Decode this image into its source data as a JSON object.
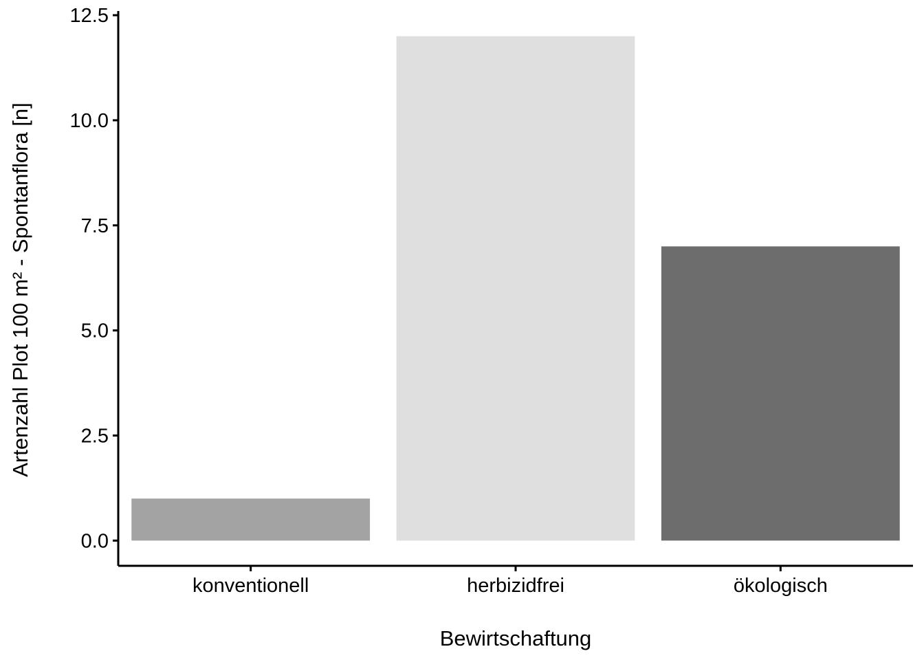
{
  "chart_data": {
    "type": "bar",
    "categories": [
      "konventionell",
      "herbizidfrei",
      "ökologisch"
    ],
    "values": [
      1,
      12,
      7
    ],
    "colors": [
      "#a3a3a3",
      "#dfdfdf",
      "#6d6d6d"
    ],
    "xlabel": "Bewirtschaftung",
    "ylabel": "Artenzahl Plot 100 m² - Spontanflora [n]",
    "ylim": [
      -0.6,
      12.6
    ],
    "yticks": [
      0,
      2.5,
      5,
      7.5,
      10,
      12.5
    ],
    "ytick_labels": [
      "0.0",
      "2.5",
      "5.0",
      "7.5",
      "10.0",
      "12.5"
    ],
    "grid": false,
    "legend": "none"
  }
}
